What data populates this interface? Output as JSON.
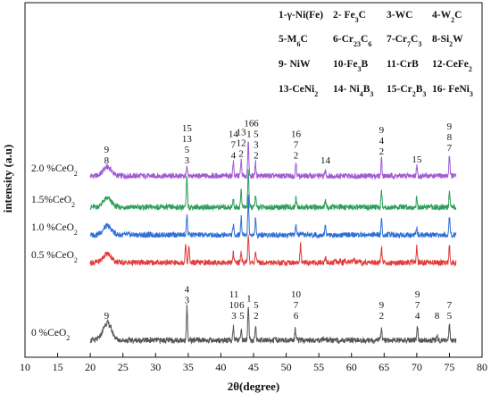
{
  "chart_data": {
    "type": "line",
    "xlabel": "2θ(degree)",
    "ylabel": "intensity (a.u)",
    "xlim": [
      10,
      80
    ],
    "x_ticks": [
      10,
      15,
      20,
      25,
      30,
      35,
      40,
      45,
      50,
      55,
      60,
      65,
      70,
      75,
      80
    ],
    "grid": false,
    "legend_position": "top-right",
    "phase_legend": [
      {
        "id": "1",
        "html": "1-γ-Ni(Fe)"
      },
      {
        "id": "2",
        "html": "2- Fe<tspan baseline-shift='sub' font-size='8'>3</tspan>C"
      },
      {
        "id": "3",
        "html": "3-WC"
      },
      {
        "id": "4",
        "html": "4-W<tspan baseline-shift='sub' font-size='8'>2</tspan>C"
      },
      {
        "id": "5",
        "html": "5-M<tspan baseline-shift='sub' font-size='8'>6</tspan>C"
      },
      {
        "id": "6",
        "html": "6-Cr<tspan baseline-shift='sub' font-size='8'>23</tspan>C<tspan baseline-shift='sub' font-size='8'>6</tspan>"
      },
      {
        "id": "7",
        "html": "7-Cr<tspan baseline-shift='sub' font-size='8'>7</tspan>C<tspan baseline-shift='sub' font-size='8'>3</tspan>"
      },
      {
        "id": "8",
        "html": "8-Si<tspan baseline-shift='sub' font-size='8'>2</tspan>W"
      },
      {
        "id": "9",
        "html": "9- NiW"
      },
      {
        "id": "10",
        "html": "10-Fe<tspan baseline-shift='sub' font-size='8'>3</tspan>B"
      },
      {
        "id": "11",
        "html": "11-CrB"
      },
      {
        "id": "12",
        "html": "12-CeFe<tspan baseline-shift='sub' font-size='8'>2</tspan>"
      },
      {
        "id": "13",
        "html": "13-CeNi<tspan baseline-shift='sub' font-size='8'>2</tspan>"
      },
      {
        "id": "14",
        "html": "14- Ni<tspan baseline-shift='sub' font-size='8'>4</tspan>B<tspan baseline-shift='sub' font-size='8'>3</tspan>"
      },
      {
        "id": "15",
        "html": "15-Cr<tspan baseline-shift='sub' font-size='8'>2</tspan>B<tspan baseline-shift='sub' font-size='8'>3</tspan>"
      },
      {
        "id": "16",
        "html": "16- FeNi<tspan baseline-shift='sub' font-size='8'>3</tspan>"
      }
    ],
    "series": [
      {
        "name": "2.0 %CeO2",
        "label_html": "2.0 %CeO<tspan baseline-shift='sub' font-size='8'>2</tspan>",
        "color": "#a05bd4",
        "hump_height": 0.45,
        "peaks": [
          {
            "x": 34.8,
            "h": 0.4
          },
          {
            "x": 41.9,
            "h": 0.7
          },
          {
            "x": 43.1,
            "h": 0.8
          },
          {
            "x": 44.2,
            "h": 1.8
          },
          {
            "x": 45.3,
            "h": 0.7
          },
          {
            "x": 51.5,
            "h": 0.7
          },
          {
            "x": 56.0,
            "h": 0.3
          },
          {
            "x": 64.6,
            "h": 0.9
          },
          {
            "x": 70.0,
            "h": 0.5
          },
          {
            "x": 75.0,
            "h": 1.1
          }
        ],
        "annotations": [
          {
            "x": 22.5,
            "lines": [
              "9",
              "8"
            ]
          },
          {
            "x": 34.8,
            "lines": [
              "15",
              "13",
              "5",
              "3"
            ]
          },
          {
            "x": 41.9,
            "lines": [
              "14",
              "7",
              "4"
            ]
          },
          {
            "x": 43.1,
            "lines": [
              "13",
              "12",
              "2"
            ]
          },
          {
            "x": 44.3,
            "lines": [
              "16",
              "1"
            ]
          },
          {
            "x": 45.4,
            "lines": [
              "6",
              "5",
              "3",
              "2"
            ]
          },
          {
            "x": 51.5,
            "lines": [
              "16",
              "7",
              "2"
            ]
          },
          {
            "x": 56.0,
            "lines": [
              "14"
            ]
          },
          {
            "x": 64.6,
            "lines": [
              "9",
              "4",
              "2"
            ]
          },
          {
            "x": 70.0,
            "lines": [
              "15"
            ]
          },
          {
            "x": 75.0,
            "lines": [
              "9",
              "8",
              "7"
            ]
          }
        ]
      },
      {
        "name": "1.5%CeO2",
        "label_html": "1.5%CeO<tspan baseline-shift='sub' font-size='8'>2</tspan>",
        "color": "#2e9e5b",
        "hump_height": 0.45,
        "peaks": [
          {
            "x": 34.8,
            "h": 1.5
          },
          {
            "x": 41.9,
            "h": 0.4
          },
          {
            "x": 43.1,
            "h": 0.9
          },
          {
            "x": 44.2,
            "h": 2.0
          },
          {
            "x": 45.3,
            "h": 0.6
          },
          {
            "x": 51.5,
            "h": 0.5
          },
          {
            "x": 56.0,
            "h": 0.3
          },
          {
            "x": 64.6,
            "h": 0.8
          },
          {
            "x": 70.0,
            "h": 0.5
          },
          {
            "x": 75.0,
            "h": 0.8
          }
        ],
        "annotations": []
      },
      {
        "name": "1.0 %CeO2",
        "label_html": "1.0 %CeO<tspan baseline-shift='sub' font-size='8'>2</tspan>",
        "color": "#2f6fd6",
        "hump_height": 0.45,
        "peaks": [
          {
            "x": 34.8,
            "h": 1.0
          },
          {
            "x": 41.9,
            "h": 0.5
          },
          {
            "x": 43.1,
            "h": 0.9
          },
          {
            "x": 44.2,
            "h": 2.0
          },
          {
            "x": 45.3,
            "h": 0.8
          },
          {
            "x": 51.5,
            "h": 0.5
          },
          {
            "x": 56.0,
            "h": 0.5
          },
          {
            "x": 64.6,
            "h": 0.8
          },
          {
            "x": 70.0,
            "h": 0.4
          },
          {
            "x": 75.0,
            "h": 0.9
          }
        ],
        "annotations": []
      },
      {
        "name": "0.5 %CeO2",
        "label_html": "0.5 %CeO<tspan baseline-shift='sub' font-size='8'>2</tspan>",
        "color": "#e03c3c",
        "hump_height": 0.45,
        "peaks": [
          {
            "x": 34.6,
            "h": 1.0
          },
          {
            "x": 35.1,
            "h": 0.8
          },
          {
            "x": 41.9,
            "h": 0.5
          },
          {
            "x": 43.1,
            "h": 0.6
          },
          {
            "x": 44.2,
            "h": 1.5
          },
          {
            "x": 45.3,
            "h": 0.6
          },
          {
            "x": 52.2,
            "h": 0.9
          },
          {
            "x": 56.0,
            "h": 0.3
          },
          {
            "x": 57.5,
            "h": 0.15
          },
          {
            "x": 58.3,
            "h": 0.15
          },
          {
            "x": 59.0,
            "h": 0.15
          },
          {
            "x": 59.7,
            "h": 0.15
          },
          {
            "x": 60.4,
            "h": 0.15
          },
          {
            "x": 61.2,
            "h": 0.15
          },
          {
            "x": 64.6,
            "h": 0.8
          },
          {
            "x": 70.0,
            "h": 0.8
          },
          {
            "x": 75.0,
            "h": 0.9
          }
        ],
        "annotations": []
      },
      {
        "name": "0 %CeO2",
        "label_html": "0 %CeO<tspan baseline-shift='sub' font-size='8'>2</tspan>",
        "color": "#555555",
        "hump_height": 0.9,
        "peaks": [
          {
            "x": 34.8,
            "h": 1.7
          },
          {
            "x": 41.9,
            "h": 0.7
          },
          {
            "x": 43.1,
            "h": 0.6
          },
          {
            "x": 44.2,
            "h": 1.8
          },
          {
            "x": 45.3,
            "h": 0.7
          },
          {
            "x": 51.4,
            "h": 0.6
          },
          {
            "x": 64.6,
            "h": 0.6
          },
          {
            "x": 70.1,
            "h": 0.7
          },
          {
            "x": 73.1,
            "h": 0.25
          },
          {
            "x": 75.0,
            "h": 0.8
          }
        ],
        "annotations": [
          {
            "x": 22.5,
            "lines": [
              "9"
            ]
          },
          {
            "x": 34.8,
            "lines": [
              "4",
              "3"
            ]
          },
          {
            "x": 42.0,
            "lines": [
              "11",
              "10",
              "3"
            ]
          },
          {
            "x": 43.2,
            "lines": [
              "6",
              "5"
            ]
          },
          {
            "x": 44.3,
            "lines": [
              "1"
            ]
          },
          {
            "x": 45.4,
            "lines": [
              "5",
              "2"
            ]
          },
          {
            "x": 51.5,
            "lines": [
              "10",
              "7",
              "6"
            ]
          },
          {
            "x": 64.6,
            "lines": [
              "9",
              "2"
            ]
          },
          {
            "x": 70.1,
            "lines": [
              "9",
              "7",
              "4"
            ]
          },
          {
            "x": 73.1,
            "lines": [
              "8"
            ]
          },
          {
            "x": 75.0,
            "lines": [
              "7",
              "5"
            ]
          }
        ]
      }
    ]
  }
}
